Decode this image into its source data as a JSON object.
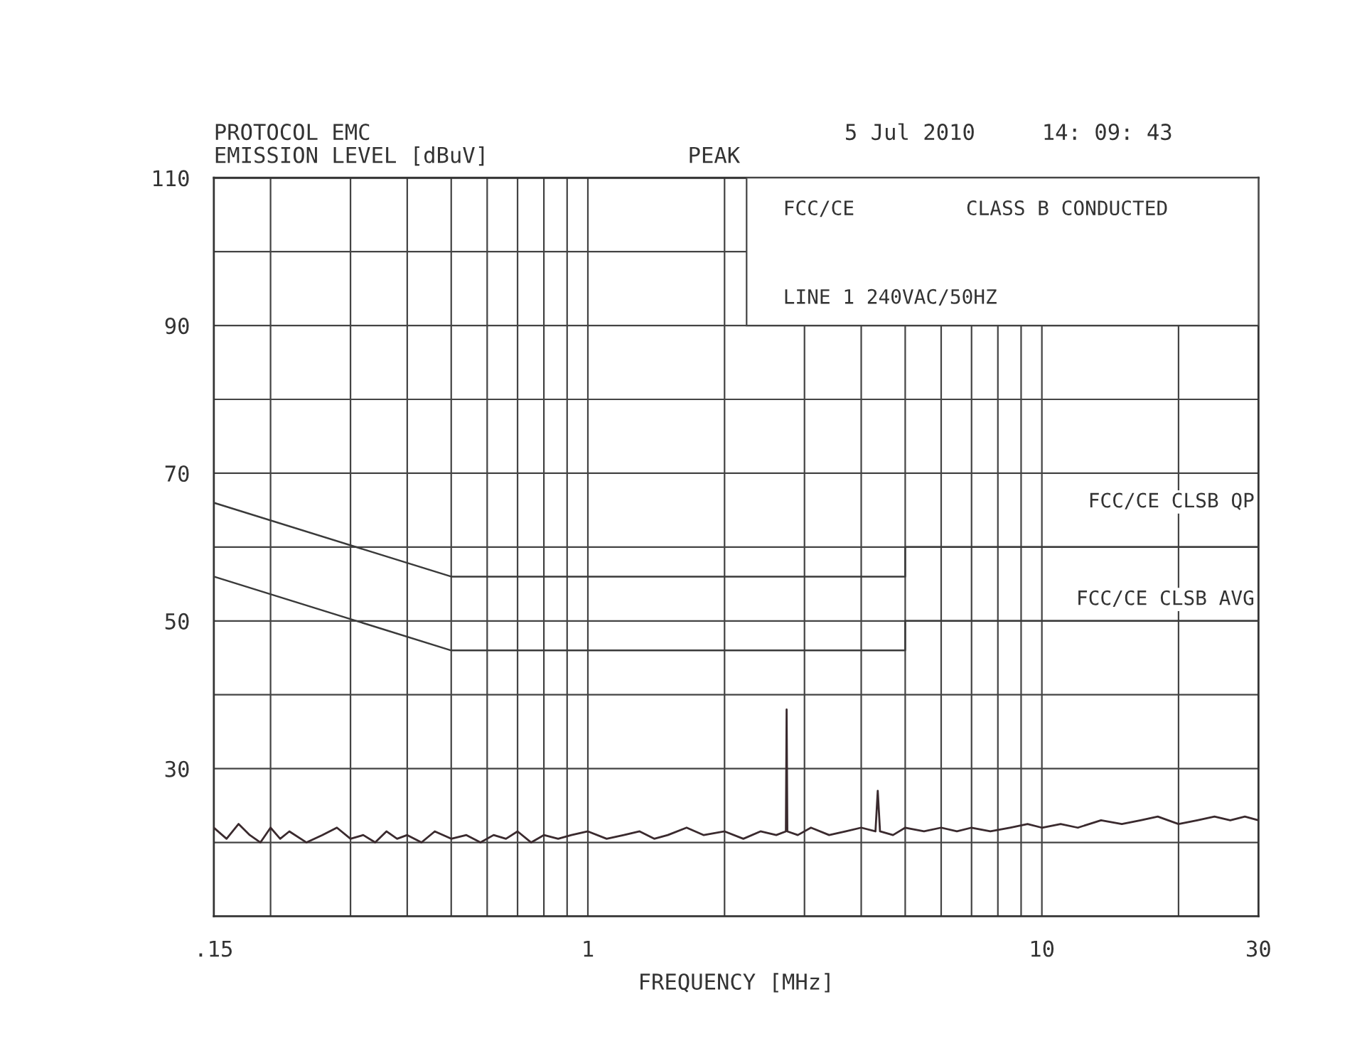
{
  "chart_data": {
    "type": "line",
    "ylabel": "EMISSION LEVEL [dBuV]",
    "xlabel": "FREQUENCY [MHz]",
    "annotations": [
      "PROTOCOL EMC",
      "PEAK",
      "5 Jul 2010",
      "14: 09: 43",
      "FCC/CE",
      "CLASS B CONDUCTED",
      "LINE 1 240VAC/50HZ"
    ],
    "log": "x",
    "xlim": [
      0.15,
      30
    ],
    "ylim": [
      10,
      110
    ],
    "xticks": [
      {
        "value": 0.15,
        "label": ".15"
      },
      {
        "value": 0.2,
        "label": null
      },
      {
        "value": 0.3,
        "label": null
      },
      {
        "value": 0.4,
        "label": null
      },
      {
        "value": 0.5,
        "label": null
      },
      {
        "value": 0.6,
        "label": null
      },
      {
        "value": 0.7,
        "label": null
      },
      {
        "value": 0.8,
        "label": null
      },
      {
        "value": 0.9,
        "label": null
      },
      1,
      {
        "value": 2,
        "label": null
      },
      {
        "value": 3,
        "label": null
      },
      {
        "value": 4,
        "label": null
      },
      {
        "value": 5,
        "label": null
      },
      {
        "value": 6,
        "label": null
      },
      {
        "value": 7,
        "label": null
      },
      {
        "value": 8,
        "label": null
      },
      {
        "value": 9,
        "label": null
      },
      10,
      {
        "value": 20,
        "label": null
      },
      30
    ],
    "yticks": [
      {
        "value": 10,
        "label": null
      },
      {
        "value": 20,
        "label": null
      },
      30,
      {
        "value": 40,
        "label": null
      },
      50,
      {
        "value": 60,
        "label": null
      },
      70,
      {
        "value": 80,
        "label": null
      },
      90,
      {
        "value": 100,
        "label": null
      },
      110
    ],
    "grid": true,
    "legend": false,
    "line_style": "solid",
    "series": [
      {
        "color": "#3a2a2e",
        "x": [
          0.15,
          0.16,
          0.17,
          0.18,
          0.19,
          0.2,
          0.21,
          0.22,
          0.24,
          0.26,
          0.28,
          0.3,
          0.32,
          0.34,
          0.36,
          0.38,
          0.4,
          0.43,
          0.46,
          0.5,
          0.54,
          0.58,
          0.62,
          0.66,
          0.7,
          0.75,
          0.8,
          0.86,
          0.92,
          1.0,
          1.1,
          1.2,
          1.3,
          1.4,
          1.5,
          1.65,
          1.8,
          2.0,
          2.2,
          2.4,
          2.6,
          2.73,
          2.74,
          2.75,
          2.9,
          3.1,
          3.4,
          3.7,
          4.0,
          4.3,
          4.35,
          4.4,
          4.7,
          5.0,
          5.5,
          6.0,
          6.5,
          7.0,
          7.7,
          8.5,
          9.3,
          10,
          11,
          12,
          13.5,
          15,
          16.5,
          18,
          20,
          22,
          24,
          26,
          28,
          30
        ],
        "values": [
          22,
          20.5,
          22.5,
          21,
          20,
          22,
          20.5,
          21.5,
          20,
          21,
          22,
          20.5,
          21,
          20,
          21.5,
          20.5,
          21,
          20,
          21.5,
          20.5,
          21,
          20,
          21,
          20.5,
          21.5,
          20,
          21,
          20.5,
          21,
          21.5,
          20.5,
          21,
          21.5,
          20.5,
          21,
          22,
          21,
          21.5,
          20.5,
          21.5,
          21,
          21.5,
          38,
          21.5,
          21,
          22,
          21,
          21.5,
          22,
          21.5,
          27,
          21.5,
          21,
          22,
          21.5,
          22,
          21.5,
          22,
          21.5,
          22,
          22.5,
          22,
          22.5,
          22,
          23,
          22.5,
          23,
          23.5,
          22.5,
          23,
          23.5,
          23,
          23.5,
          23
        ]
      },
      {
        "name": "FCC/CE CLSB QP",
        "color": "#3a3a3a",
        "x": [
          0.15,
          0.5,
          5,
          5,
          30
        ],
        "values": [
          66,
          56,
          56,
          60,
          60
        ]
      },
      {
        "name": "FCC/CE CLSB AVG",
        "color": "#3a3a3a",
        "x": [
          0.15,
          0.5,
          5,
          5,
          30
        ],
        "values": [
          56,
          46,
          46,
          50,
          50
        ]
      }
    ]
  }
}
